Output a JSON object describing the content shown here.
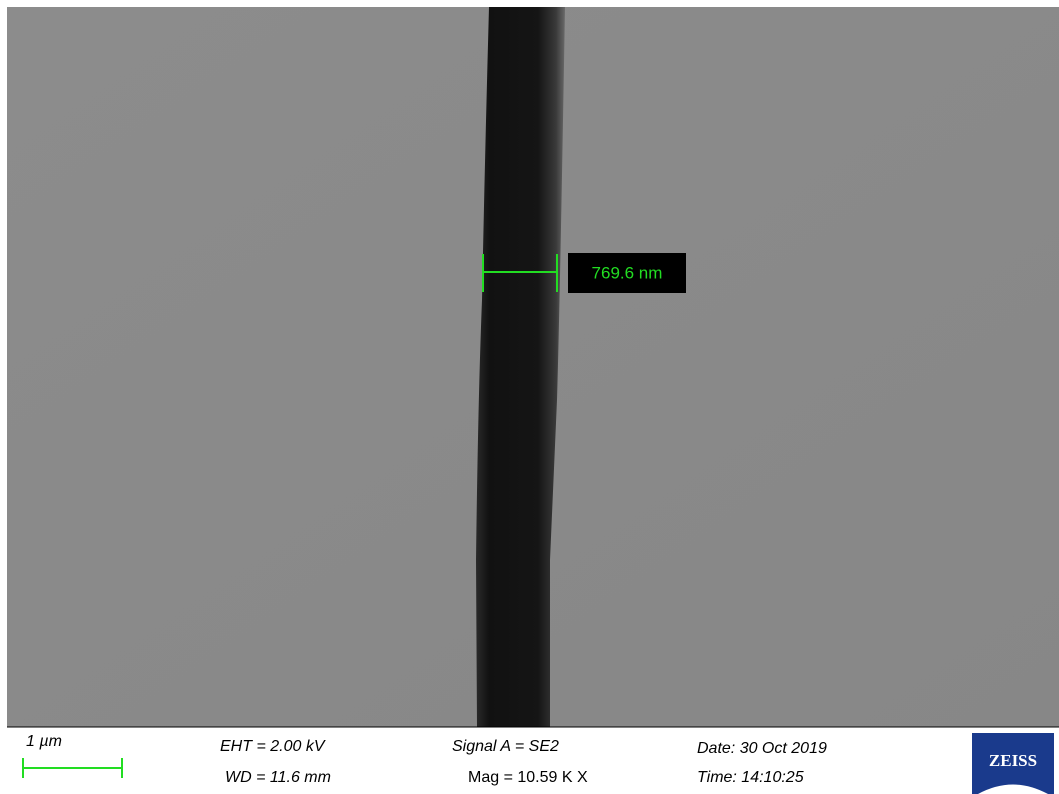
{
  "image": {
    "measurement": "769.6 nm"
  },
  "info_bar": {
    "scale_bar": "1 µm",
    "eht": "EHT =  2.00 kV",
    "wd": "WD = 11.6 mm",
    "signal": "Signal A = SE2",
    "mag": "Mag =  10.59 K X",
    "date": "Date: 30 Oct 2019",
    "time": "Time: 14:10:25"
  },
  "logo": "ZEISS"
}
